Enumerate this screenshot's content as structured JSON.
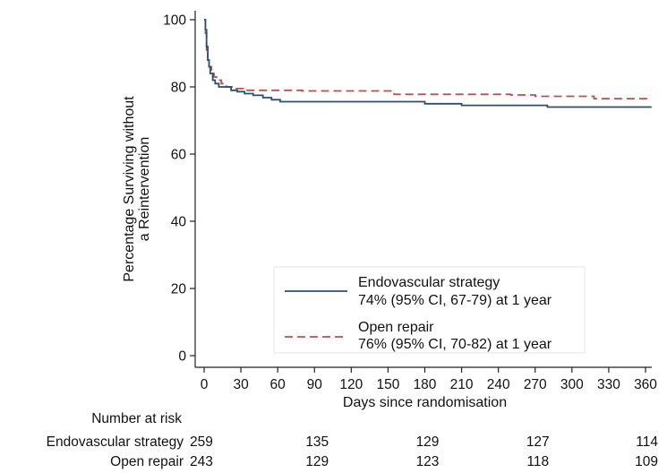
{
  "chart_data": {
    "type": "line",
    "xlabel": "Days since randomisation",
    "ylabel_lines": [
      "Percentage Surviving without",
      "a Reintervention"
    ],
    "xlim": [
      0,
      365
    ],
    "ylim": [
      0,
      100
    ],
    "x_ticks": [
      0,
      30,
      60,
      90,
      120,
      150,
      180,
      210,
      240,
      270,
      300,
      330,
      360
    ],
    "y_ticks": [
      0,
      20,
      40,
      60,
      80,
      100
    ],
    "grid": false,
    "legend_position": "bottom-right",
    "series": [
      {
        "name": "Endovascular strategy",
        "legend_note": "74% (95% CI, 67-79) at 1 year",
        "color": "#2c4f6f",
        "line_style": "solid",
        "step_points": [
          [
            0,
            100
          ],
          [
            1,
            97
          ],
          [
            2,
            92
          ],
          [
            3,
            88
          ],
          [
            4,
            86
          ],
          [
            5,
            84
          ],
          [
            7,
            82
          ],
          [
            9,
            81
          ],
          [
            12,
            80
          ],
          [
            18,
            80
          ],
          [
            22,
            79
          ],
          [
            27,
            78.6
          ],
          [
            33,
            78
          ],
          [
            40,
            77.5
          ],
          [
            48,
            76.8
          ],
          [
            55,
            76.2
          ],
          [
            62,
            75.6
          ],
          [
            70,
            75.6
          ],
          [
            100,
            75.6
          ],
          [
            175,
            75.6
          ],
          [
            180,
            75
          ],
          [
            205,
            75
          ],
          [
            210,
            74.5
          ],
          [
            275,
            74.5
          ],
          [
            280,
            74
          ],
          [
            365,
            74
          ]
        ]
      },
      {
        "name": "Open repair",
        "legend_note": "76% (95% CI, 70-82) at 1 year",
        "color": "#b8504f",
        "line_style": "dashed",
        "step_points": [
          [
            0,
            100
          ],
          [
            1,
            96
          ],
          [
            2,
            91
          ],
          [
            3,
            88
          ],
          [
            4,
            86
          ],
          [
            6,
            84
          ],
          [
            8,
            83
          ],
          [
            10,
            82
          ],
          [
            14,
            81
          ],
          [
            18,
            80
          ],
          [
            25,
            79.5
          ],
          [
            32,
            79
          ],
          [
            60,
            79
          ],
          [
            80,
            78.8
          ],
          [
            150,
            78.8
          ],
          [
            155,
            77.8
          ],
          [
            250,
            77.6
          ],
          [
            270,
            77.2
          ],
          [
            315,
            77.2
          ],
          [
            318,
            76.5
          ],
          [
            365,
            76.5
          ]
        ]
      }
    ]
  },
  "risk_table": {
    "title": "Number at risk",
    "rows": [
      {
        "label": "Endovascular strategy",
        "values": [
          {
            "x": 0,
            "n": "259"
          },
          {
            "x": 90,
            "n": "135"
          },
          {
            "x": 180,
            "n": "129"
          },
          {
            "x": 270,
            "n": "127"
          },
          {
            "x": 365,
            "n": "114"
          }
        ]
      },
      {
        "label": "Open repair",
        "values": [
          {
            "x": 0,
            "n": "243"
          },
          {
            "x": 90,
            "n": "129"
          },
          {
            "x": 180,
            "n": "123"
          },
          {
            "x": 270,
            "n": "118"
          },
          {
            "x": 365,
            "n": "109"
          }
        ]
      }
    ]
  }
}
